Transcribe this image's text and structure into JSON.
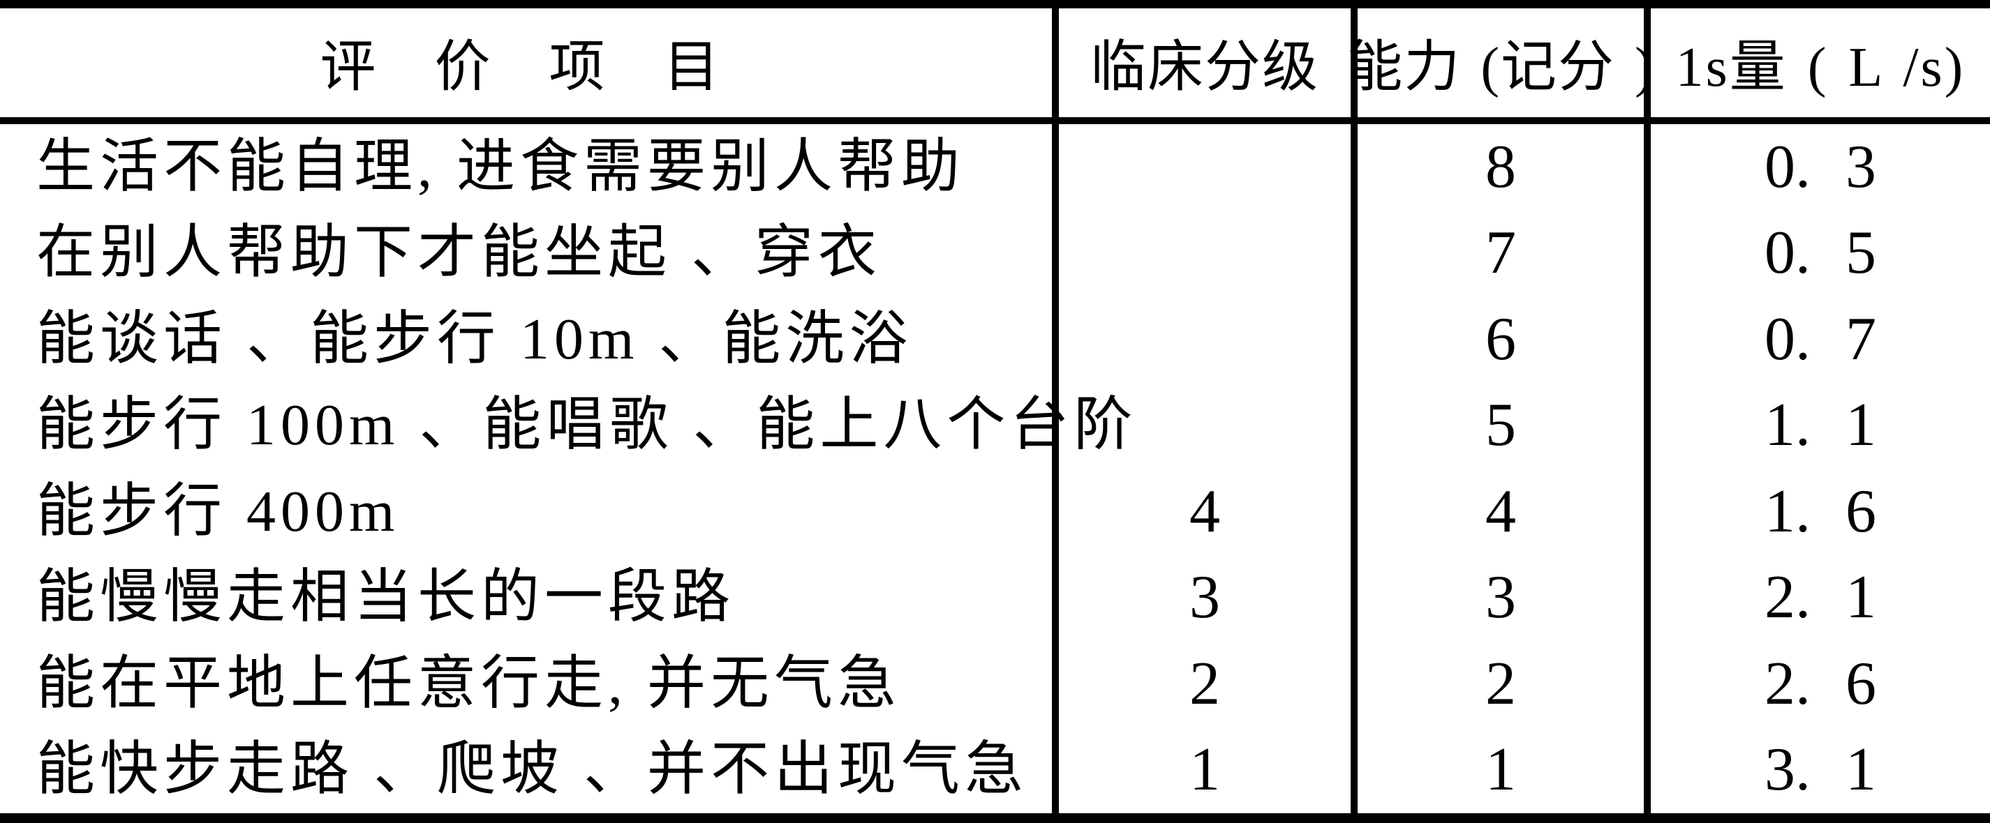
{
  "page": {
    "background_color": "#ffffff",
    "ink_color": "#000000"
  },
  "table": {
    "columns": [
      {
        "id": "item",
        "label": "评 价 项 目"
      },
      {
        "id": "clinical_grade",
        "label": "临床分级"
      },
      {
        "id": "ability_score",
        "label": "能力 (记分 )"
      },
      {
        "id": "fev1",
        "label": "1s量 ( L /s)"
      }
    ],
    "rows": [
      {
        "item": "生活不能自理, 进食需要别人帮助",
        "clinical_grade": "",
        "ability_score": "8",
        "fev1": "0. 3"
      },
      {
        "item": "在别人帮助下才能坐起 、穿衣",
        "clinical_grade": "",
        "ability_score": "7",
        "fev1": "0. 5"
      },
      {
        "item": "能谈话 、能步行 10m 、能洗浴",
        "clinical_grade": "",
        "ability_score": "6",
        "fev1": "0. 7"
      },
      {
        "item": "能步行 100m 、能唱歌 、能上八个台阶",
        "clinical_grade": "",
        "ability_score": "5",
        "fev1": "1. 1"
      },
      {
        "item": "能步行 400m",
        "clinical_grade": "4",
        "ability_score": "4",
        "fev1": "1. 6"
      },
      {
        "item": "能慢慢走相当长的一段路",
        "clinical_grade": "3",
        "ability_score": "3",
        "fev1": "2. 1"
      },
      {
        "item": "能在平地上任意行走, 并无气急",
        "clinical_grade": "2",
        "ability_score": "2",
        "fev1": "2. 6"
      },
      {
        "item": "能快步走路 、爬坡 、并不出现气急",
        "clinical_grade": "1",
        "ability_score": "1",
        "fev1": "3. 1"
      }
    ]
  }
}
